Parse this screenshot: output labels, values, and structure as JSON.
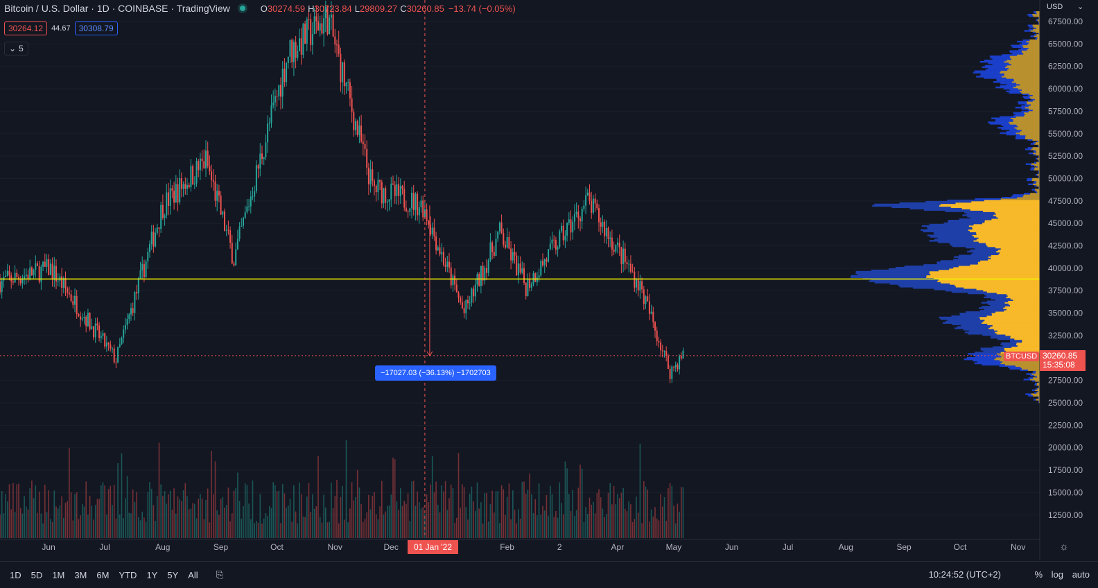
{
  "header": {
    "title": "Bitcoin / U.S. Dollar · 1D · COINBASE · TradingView",
    "ohlc": {
      "o_label": "O",
      "o": "30274.59",
      "h_label": "H",
      "h": "30723.84",
      "l_label": "L",
      "l": "29809.27",
      "c_label": "C",
      "c": "30260.85",
      "change": "−13.74 (−0.05%)"
    },
    "sell_price": "30264.12",
    "spread": "44.67",
    "buy_price": "30308.79",
    "collapsed_indicators": "5"
  },
  "measure_label": "−17027.03 (−36.13%) −1702703",
  "price_axis": {
    "currency": "USD",
    "ticks": [
      "67500.00",
      "65000.00",
      "62500.00",
      "60000.00",
      "57500.00",
      "55000.00",
      "52500.00",
      "50000.00",
      "47500.00",
      "45000.00",
      "42500.00",
      "40000.00",
      "37500.00",
      "35000.00",
      "32500.00",
      "27500.00",
      "25000.00",
      "22500.00",
      "20000.00",
      "17500.00",
      "15000.00",
      "12500.00"
    ],
    "symbol_tag": "BTCUSD",
    "last_price": "30260.85",
    "countdown": "15:35:08",
    "hline_value": 38800
  },
  "time_axis": {
    "labels": [
      "Jun",
      "Jul",
      "Aug",
      "Sep",
      "Oct",
      "Nov",
      "Dec",
      "Feb",
      "2",
      "Apr",
      "May",
      "Jun",
      "Jul",
      "Aug",
      "Sep",
      "Oct",
      "Nov"
    ],
    "crosshair_date": "01 Jan '22"
  },
  "bottom_bar": {
    "ranges": [
      "1D",
      "5D",
      "1M",
      "3M",
      "6M",
      "YTD",
      "1Y",
      "5Y",
      "All"
    ],
    "time": "10:24:52 (UTC+2)",
    "percent": "%",
    "log": "log",
    "auto": "auto"
  },
  "colors": {
    "background": "#131722",
    "up": "#26a69a",
    "down": "#ef5350",
    "hline": "#f5f500",
    "volume_profile_up": "#f7b929",
    "volume_profile_down": "#1e3fa8",
    "volume_profile_outside_up": "#b8902e",
    "volume_profile_outside_down": "#1a3fc9"
  },
  "icons": [
    "live-dot-icon",
    "chevron-down-icon",
    "compare-icon",
    "gear-icon"
  ],
  "chart_data": {
    "type": "candlestick",
    "symbol": "BTCUSD",
    "interval": "1D",
    "ylim": [
      10000,
      69000
    ],
    "anchors": [
      {
        "date": "2021-05-19",
        "close": 38500
      },
      {
        "date": "2021-06-15",
        "close": 40000
      },
      {
        "date": "2021-07-20",
        "close": 29800
      },
      {
        "date": "2021-08-14",
        "close": 47000
      },
      {
        "date": "2021-09-06",
        "close": 52000
      },
      {
        "date": "2021-09-21",
        "close": 41000
      },
      {
        "date": "2021-10-20",
        "close": 64000
      },
      {
        "date": "2021-11-10",
        "close": 68000
      },
      {
        "date": "2021-12-04",
        "close": 49000
      },
      {
        "date": "2021-12-31",
        "close": 47000
      },
      {
        "date": "2022-01-22",
        "close": 35000
      },
      {
        "date": "2022-02-10",
        "close": 44000
      },
      {
        "date": "2022-02-24",
        "close": 38000
      },
      {
        "date": "2022-03-29",
        "close": 47500
      },
      {
        "date": "2022-04-26",
        "close": 38000
      },
      {
        "date": "2022-05-12",
        "close": 28500
      },
      {
        "date": "2022-05-19",
        "close": 30260
      }
    ],
    "volume_note": "volume histogram along bottom"
  }
}
